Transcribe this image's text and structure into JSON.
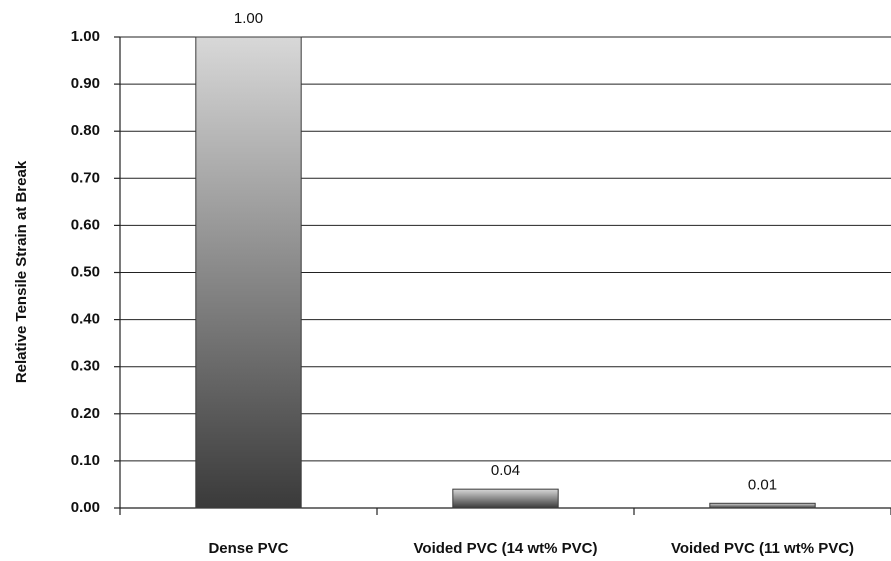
{
  "chart_data": {
    "type": "bar",
    "y_label": "Relative Tensile Strain at Break",
    "categories": [
      "Dense PVC",
      "Voided PVC (14 wt% PVC)",
      "Voided PVC (11 wt% PVC)"
    ],
    "values": [
      1.0,
      0.04,
      0.01
    ],
    "value_labels": [
      "1.00",
      "0.04",
      "0.01"
    ],
    "color": "#3a3a3a",
    "ylim": [
      0,
      1
    ],
    "yticks": [
      {
        "value": 0,
        "label": "0.00"
      },
      {
        "value": 0.1,
        "label": "0.10"
      },
      {
        "value": 0.2,
        "label": "0.20"
      },
      {
        "value": 0.3,
        "label": "0.30"
      },
      {
        "value": 0.4,
        "label": "0.40"
      },
      {
        "value": 0.5,
        "label": "0.50"
      },
      {
        "value": 0.6,
        "label": "0.60"
      },
      {
        "value": 0.7,
        "label": "0.70"
      },
      {
        "value": 0.8,
        "label": "0.80"
      },
      {
        "value": 0.9,
        "label": "0.90"
      },
      {
        "value": 1,
        "label": "1.00"
      }
    ],
    "grid": true
  }
}
